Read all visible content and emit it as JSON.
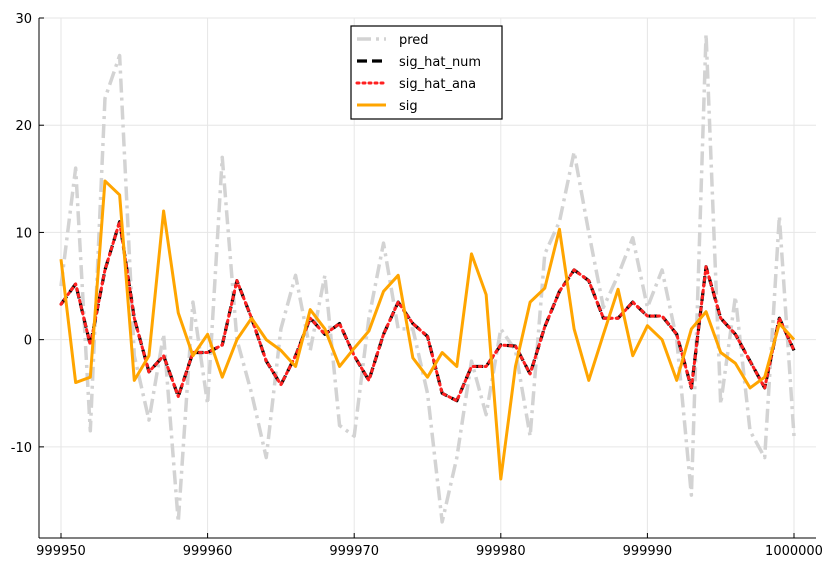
{
  "chart_data": {
    "type": "line",
    "title": "",
    "xlabel": "",
    "ylabel": "",
    "x": [
      999950,
      999951,
      999952,
      999953,
      999954,
      999955,
      999956,
      999957,
      999958,
      999959,
      999960,
      999961,
      999962,
      999963,
      999964,
      999965,
      999966,
      999967,
      999968,
      999969,
      999970,
      999971,
      999972,
      999973,
      999974,
      999975,
      999976,
      999977,
      999978,
      999979,
      999980,
      999981,
      999982,
      999983,
      999984,
      999985,
      999986,
      999987,
      999988,
      999989,
      999990,
      999991,
      999992,
      999993,
      999994,
      999995,
      999996,
      999997,
      999998,
      999999,
      1000000
    ],
    "xlim": [
      999948.5,
      1000001.5
    ],
    "ylim": [
      -18.5,
      30
    ],
    "xticks": [
      999950,
      999960,
      999970,
      999980,
      999990,
      1000000
    ],
    "xtick_labels": [
      "999950",
      "999960",
      "999970",
      "999980",
      "999990",
      "1000000"
    ],
    "yticks": [
      -10,
      0,
      10,
      20,
      30
    ],
    "ytick_labels": [
      "-10",
      "0",
      "10",
      "20",
      "30"
    ],
    "grid": true,
    "legend_position": "top-center",
    "series": [
      {
        "name": "pred",
        "color": "#d3d3d3",
        "dash": "dashdot",
        "values": [
          5,
          16,
          -8.5,
          22.5,
          26.5,
          -1.5,
          -7.5,
          0.5,
          -17,
          3.5,
          -6,
          17,
          0,
          -5,
          -11,
          1,
          6,
          -1,
          6,
          -8,
          -9,
          2,
          9,
          1,
          1,
          -5,
          -17,
          -11,
          -2,
          -7,
          1,
          -1,
          -9,
          8,
          11,
          17.5,
          10,
          3,
          6,
          9.5,
          3,
          6.5,
          0,
          -14.5,
          28.5,
          -6,
          4,
          -8.5,
          -11,
          11.5,
          -9
        ]
      },
      {
        "name": "sig_hat_num",
        "color": "#000000",
        "dash": "dash",
        "values": [
          3.3,
          5.2,
          -0.5,
          6.5,
          11,
          2,
          -3,
          -1.5,
          -5.3,
          -1.2,
          -1.2,
          -0.5,
          5.5,
          2,
          -2,
          -4.2,
          -1.5,
          2,
          0.5,
          1.5,
          -1.5,
          -3.8,
          0.5,
          3.5,
          1.5,
          0.3,
          -5,
          -5.7,
          -2.5,
          -2.5,
          -0.5,
          -0.6,
          -3.2,
          1.2,
          4.5,
          6.5,
          5.5,
          2,
          2,
          3.5,
          2.2,
          2.2,
          0.5,
          -4.5,
          6.8,
          2,
          0.5,
          -2,
          -4.5,
          2,
          -1
        ]
      },
      {
        "name": "sig_hat_ana",
        "color": "#ff2020",
        "dash": "dot",
        "values": [
          3.3,
          5.2,
          -0.5,
          6.5,
          11,
          2,
          -3,
          -1.5,
          -5.3,
          -1.2,
          -1.2,
          -0.5,
          5.5,
          2,
          -2,
          -4.2,
          -1.5,
          2,
          0.5,
          1.5,
          -1.5,
          -3.8,
          0.5,
          3.5,
          1.5,
          0.3,
          -5,
          -5.7,
          -2.5,
          -2.5,
          -0.5,
          -0.6,
          -3.2,
          1.2,
          4.5,
          6.5,
          5.5,
          2,
          2,
          3.5,
          2.2,
          2.2,
          0.5,
          -4.5,
          6.8,
          2,
          0.5,
          -2,
          -4.5,
          2,
          -1
        ]
      },
      {
        "name": "sig",
        "color": "#ffa500",
        "dash": "solid",
        "values": [
          7.5,
          -4,
          -3.5,
          14.8,
          13.5,
          -3.8,
          -1.5,
          12,
          2.5,
          -1.5,
          0.5,
          -3.5,
          0,
          2,
          0,
          -1,
          -2.5,
          2.8,
          1,
          -2.5,
          -0.8,
          0.8,
          4.5,
          6,
          -1.7,
          -3.5,
          -1.2,
          -2.5,
          8,
          4.2,
          -13,
          -2.5,
          3.5,
          4.8,
          10.3,
          1,
          -3.8,
          0.5,
          4.7,
          -1.5,
          1.3,
          0,
          -3.8,
          1,
          2.6,
          -1.2,
          -2.2,
          -4.5,
          -3.5,
          1.5,
          0
        ]
      }
    ]
  }
}
